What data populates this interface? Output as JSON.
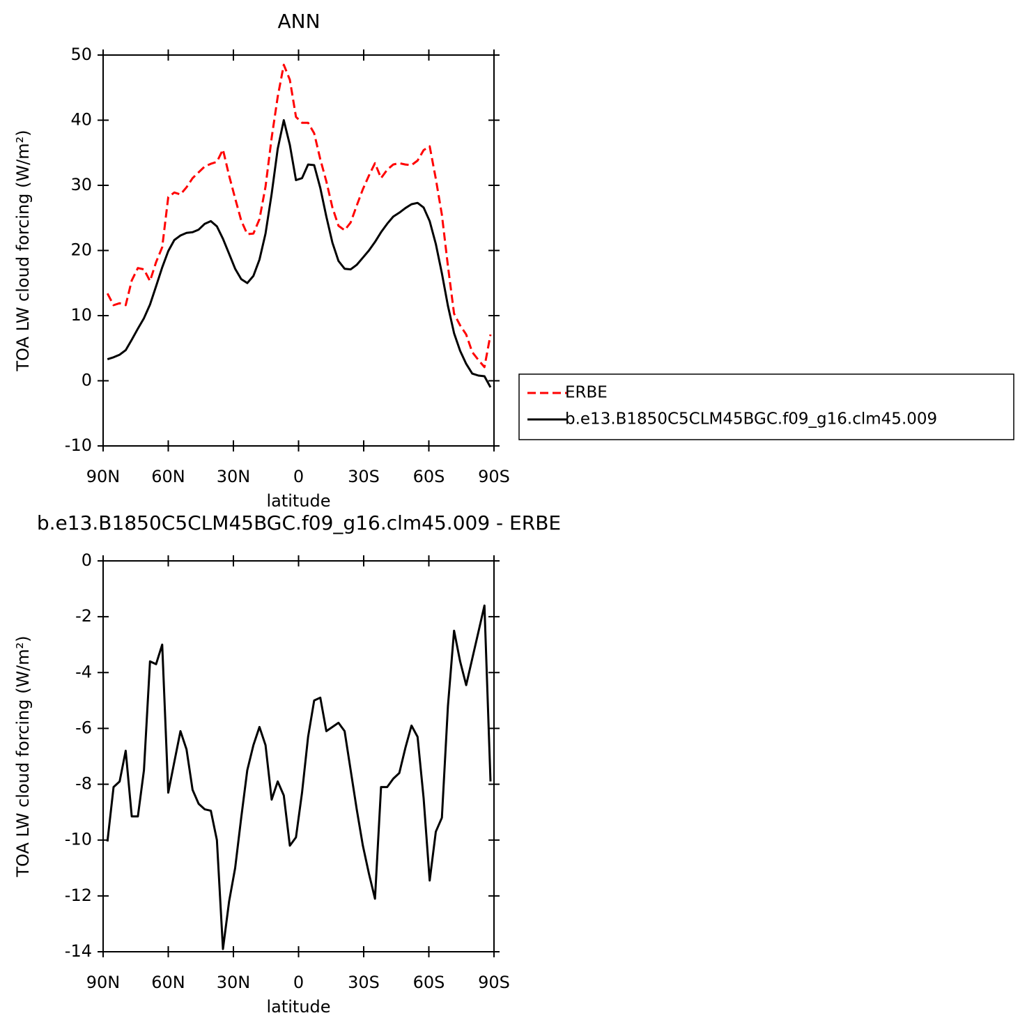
{
  "chart_data": [
    {
      "type": "line",
      "title": "ANN",
      "xlabel": "latitude",
      "ylabel": "TOA LW cloud forcing (W/m²)",
      "x": [
        88,
        85.2,
        82.4,
        79.6,
        76.8,
        74,
        71.2,
        68.4,
        65.6,
        62.8,
        60,
        57.2,
        54.4,
        51.6,
        48.8,
        46,
        43.2,
        40.4,
        37.6,
        34.8,
        32,
        29.2,
        26.4,
        23.6,
        20.8,
        18,
        15.2,
        12.4,
        9.6,
        6.8,
        4,
        1.2,
        -1.6,
        -4.4,
        -7.2,
        -10,
        -12.8,
        -15.6,
        -18.4,
        -21.2,
        -24,
        -26.8,
        -29.6,
        -32.4,
        -35.2,
        -38,
        -40.8,
        -43.6,
        -46.4,
        -49.2,
        -52,
        -54.8,
        -57.6,
        -60.4,
        -63.2,
        -66,
        -68.8,
        -71.6,
        -74.4,
        -77.2,
        -80,
        -82.8,
        -85.6,
        -88.4
      ],
      "series": [
        {
          "name": "ERBE",
          "color": "#ff0000",
          "dash": true,
          "values": [
            13.4,
            11.6,
            11.9,
            11.6,
            15.4,
            17.3,
            17.1,
            15.3,
            18.2,
            20.5,
            28.2,
            28.9,
            28.6,
            29.7,
            31.1,
            32.0,
            32.9,
            33.3,
            33.6,
            35.5,
            31.5,
            28.0,
            24.6,
            22.5,
            22.6,
            24.8,
            29.8,
            37.3,
            43.6,
            48.5,
            46.2,
            40.5,
            39.6,
            39.6,
            38.0,
            34.0,
            30.6,
            26.6,
            23.8,
            23.1,
            24.3,
            26.9,
            29.4,
            31.5,
            33.4,
            31.1,
            32.4,
            33.2,
            33.4,
            33.2,
            33.1,
            33.8,
            35.4,
            36.0,
            31.0,
            25.5,
            17.6,
            10.3,
            8.5,
            7.1,
            4.4,
            3.2,
            2.1,
            7.1
          ]
        },
        {
          "name": "b.e13.B1850C5CLM45BGC.f09_g16.clm45.009",
          "color": "#000000",
          "dash": false,
          "values": [
            3.3,
            3.6,
            4.0,
            4.7,
            6.3,
            8.0,
            9.6,
            11.7,
            14.5,
            17.4,
            19.9,
            21.6,
            22.3,
            22.7,
            22.8,
            23.2,
            24.1,
            24.5,
            23.7,
            21.8,
            19.5,
            17.2,
            15.6,
            15.0,
            16.1,
            18.6,
            22.6,
            28.7,
            35.6,
            40.0,
            36.2,
            30.8,
            31.1,
            33.2,
            33.1,
            29.6,
            25.2,
            21.2,
            18.4,
            17.2,
            17.1,
            17.8,
            18.9,
            20.0,
            21.3,
            22.8,
            24.1,
            25.2,
            25.8,
            26.5,
            27.1,
            27.3,
            26.6,
            24.5,
            21.0,
            16.5,
            11.5,
            7.3,
            4.6,
            2.6,
            1.1,
            0.8,
            0.7,
            -1.0
          ]
        }
      ],
      "xlim": [
        90,
        -90
      ],
      "xticks": [
        {
          "value": 90,
          "label": "90N"
        },
        {
          "value": 60,
          "label": "60N"
        },
        {
          "value": 30,
          "label": "30N"
        },
        0,
        {
          "value": -30,
          "label": "30S"
        },
        {
          "value": -60,
          "label": "60S"
        },
        {
          "value": -90,
          "label": "90S"
        }
      ],
      "ylim": [
        -10,
        50
      ],
      "yticks": [
        -10,
        0,
        10,
        20,
        30,
        40,
        50
      ],
      "legend": "right"
    },
    {
      "type": "line",
      "title": "b.e13.B1850C5CLM45BGC.f09_g16.clm45.009 - ERBE",
      "xlabel": "latitude",
      "ylabel": "TOA LW cloud forcing (W/m²)",
      "x": [
        88,
        85.2,
        82.4,
        79.6,
        76.8,
        74,
        71.2,
        68.4,
        65.6,
        62.8,
        60,
        57.2,
        54.4,
        51.6,
        48.8,
        46,
        43.2,
        40.4,
        37.6,
        34.8,
        32,
        29.2,
        26.4,
        23.6,
        20.8,
        18,
        15.2,
        12.4,
        9.6,
        6.8,
        4,
        1.2,
        -1.6,
        -4.4,
        -7.2,
        -10,
        -12.8,
        -15.6,
        -18.4,
        -21.2,
        -24,
        -26.8,
        -29.6,
        -32.4,
        -35.2,
        -38,
        -40.8,
        -43.6,
        -46.4,
        -49.2,
        -52,
        -54.8,
        -57.6,
        -60.4,
        -63.2,
        -66,
        -68.8,
        -71.6,
        -74.4,
        -77.2,
        -80,
        -82.8,
        -85.6,
        -88.4
      ],
      "series": [
        {
          "color": "#000000",
          "dash": false,
          "values": [
            -10.05,
            -8.1,
            -7.9,
            -6.8,
            -9.15,
            -9.15,
            -7.5,
            -3.6,
            -3.7,
            -3.0,
            -8.3,
            -7.2,
            -6.1,
            -6.75,
            -8.2,
            -8.7,
            -8.9,
            -8.95,
            -10.0,
            -13.9,
            -12.2,
            -11.0,
            -9.2,
            -7.5,
            -6.6,
            -5.95,
            -6.6,
            -8.55,
            -7.9,
            -8.4,
            -10.2,
            -9.9,
            -8.3,
            -6.3,
            -5.0,
            -4.9,
            -6.1,
            -5.95,
            -5.8,
            -6.1,
            -7.5,
            -8.9,
            -10.2,
            -11.2,
            -12.1,
            -8.1,
            -8.1,
            -7.8,
            -7.6,
            -6.7,
            -5.9,
            -6.3,
            -8.5,
            -11.45,
            -9.7,
            -9.2,
            -5.2,
            -2.5,
            -3.6,
            -4.45,
            -3.5,
            -2.55,
            -1.6,
            -7.9
          ]
        }
      ],
      "xlim": [
        90,
        -90
      ],
      "xticks": [
        {
          "value": 90,
          "label": "90N"
        },
        {
          "value": 60,
          "label": "60N"
        },
        {
          "value": 30,
          "label": "30N"
        },
        0,
        {
          "value": -30,
          "label": "30S"
        },
        {
          "value": -60,
          "label": "60S"
        },
        {
          "value": -90,
          "label": "90S"
        }
      ],
      "ylim": [
        -14,
        0
      ],
      "yticks": [
        -14,
        -12,
        -10,
        -8,
        -6,
        -4,
        -2,
        0
      ]
    }
  ]
}
